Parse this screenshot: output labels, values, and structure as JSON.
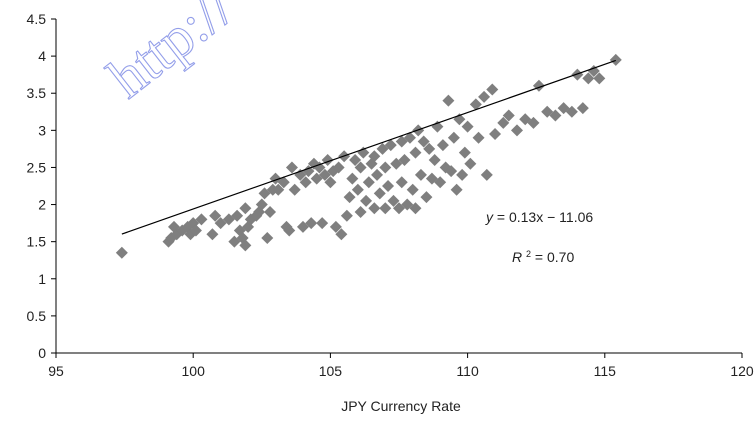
{
  "watermark": "http://",
  "chart_data": {
    "type": "scatter",
    "title": "",
    "xlabel": "JPY Currency Rate",
    "ylabel": "",
    "xlim": [
      95,
      120
    ],
    "ylim": [
      0,
      4.5
    ],
    "xticks": [
      95,
      100,
      105,
      110,
      115,
      120
    ],
    "yticks": [
      0,
      0.5,
      1,
      1.5,
      2,
      2.5,
      3,
      3.5,
      4,
      4.5
    ],
    "marker": "diamond",
    "marker_color": "#7f7f7f",
    "trendline": {
      "slope": 0.13,
      "intercept": -11.06,
      "x_range": [
        97.4,
        115.4
      ],
      "color": "#000000"
    },
    "equation_label": "= 0.13x − 11.06",
    "r2_label": "= 0.70",
    "points": [
      [
        97.4,
        1.35
      ],
      [
        99.1,
        1.5
      ],
      [
        99.2,
        1.55
      ],
      [
        99.3,
        1.7
      ],
      [
        99.4,
        1.6
      ],
      [
        99.6,
        1.65
      ],
      [
        99.8,
        1.7
      ],
      [
        99.9,
        1.6
      ],
      [
        100.0,
        1.75
      ],
      [
        100.1,
        1.65
      ],
      [
        100.3,
        1.8
      ],
      [
        100.7,
        1.6
      ],
      [
        100.8,
        1.85
      ],
      [
        101.0,
        1.75
      ],
      [
        101.3,
        1.8
      ],
      [
        101.5,
        1.5
      ],
      [
        101.6,
        1.85
      ],
      [
        101.7,
        1.65
      ],
      [
        101.8,
        1.55
      ],
      [
        101.9,
        1.45
      ],
      [
        101.9,
        1.95
      ],
      [
        102.0,
        1.7
      ],
      [
        102.1,
        1.8
      ],
      [
        102.3,
        1.85
      ],
      [
        102.4,
        1.9
      ],
      [
        102.5,
        2.0
      ],
      [
        102.6,
        2.15
      ],
      [
        102.7,
        1.55
      ],
      [
        102.8,
        1.9
      ],
      [
        102.9,
        2.2
      ],
      [
        103.0,
        2.35
      ],
      [
        103.1,
        2.2
      ],
      [
        103.3,
        2.3
      ],
      [
        103.4,
        1.7
      ],
      [
        103.5,
        1.65
      ],
      [
        103.6,
        2.5
      ],
      [
        103.7,
        2.2
      ],
      [
        103.9,
        2.4
      ],
      [
        104.0,
        1.7
      ],
      [
        104.1,
        2.3
      ],
      [
        104.2,
        2.45
      ],
      [
        104.3,
        1.75
      ],
      [
        104.4,
        2.55
      ],
      [
        104.5,
        2.35
      ],
      [
        104.6,
        2.5
      ],
      [
        104.7,
        1.75
      ],
      [
        104.8,
        2.4
      ],
      [
        104.9,
        2.6
      ],
      [
        105.0,
        2.3
      ],
      [
        105.1,
        2.45
      ],
      [
        105.2,
        1.7
      ],
      [
        105.3,
        2.5
      ],
      [
        105.4,
        1.6
      ],
      [
        105.5,
        2.65
      ],
      [
        105.6,
        1.85
      ],
      [
        105.7,
        2.1
      ],
      [
        105.8,
        2.35
      ],
      [
        105.9,
        2.6
      ],
      [
        106.0,
        2.2
      ],
      [
        106.1,
        2.5
      ],
      [
        106.1,
        1.9
      ],
      [
        106.2,
        2.7
      ],
      [
        106.3,
        2.05
      ],
      [
        106.4,
        2.3
      ],
      [
        106.5,
        2.55
      ],
      [
        106.6,
        1.95
      ],
      [
        106.6,
        2.65
      ],
      [
        106.7,
        2.4
      ],
      [
        106.8,
        2.15
      ],
      [
        106.9,
        2.75
      ],
      [
        107.0,
        1.95
      ],
      [
        107.0,
        2.5
      ],
      [
        107.1,
        2.25
      ],
      [
        107.2,
        2.8
      ],
      [
        107.3,
        2.05
      ],
      [
        107.4,
        2.55
      ],
      [
        107.5,
        1.95
      ],
      [
        107.6,
        2.85
      ],
      [
        107.6,
        2.3
      ],
      [
        107.7,
        2.6
      ],
      [
        107.8,
        2.0
      ],
      [
        107.9,
        2.9
      ],
      [
        108.0,
        2.2
      ],
      [
        108.1,
        2.7
      ],
      [
        108.1,
        1.95
      ],
      [
        108.2,
        3.0
      ],
      [
        108.3,
        2.4
      ],
      [
        108.4,
        2.85
      ],
      [
        108.5,
        2.1
      ],
      [
        108.6,
        2.75
      ],
      [
        108.7,
        2.35
      ],
      [
        108.8,
        2.6
      ],
      [
        108.9,
        3.05
      ],
      [
        109.0,
        2.3
      ],
      [
        109.1,
        2.8
      ],
      [
        109.2,
        2.5
      ],
      [
        109.3,
        3.4
      ],
      [
        109.4,
        2.45
      ],
      [
        109.5,
        2.9
      ],
      [
        109.6,
        2.2
      ],
      [
        109.7,
        3.15
      ],
      [
        109.8,
        2.4
      ],
      [
        109.9,
        2.7
      ],
      [
        110.0,
        3.05
      ],
      [
        110.1,
        2.55
      ],
      [
        110.3,
        3.35
      ],
      [
        110.4,
        2.9
      ],
      [
        110.6,
        3.45
      ],
      [
        110.7,
        2.4
      ],
      [
        110.9,
        3.55
      ],
      [
        111.0,
        2.95
      ],
      [
        111.3,
        3.1
      ],
      [
        111.5,
        3.2
      ],
      [
        111.8,
        3.0
      ],
      [
        112.1,
        3.15
      ],
      [
        112.4,
        3.1
      ],
      [
        112.6,
        3.6
      ],
      [
        112.9,
        3.25
      ],
      [
        113.2,
        3.2
      ],
      [
        113.5,
        3.3
      ],
      [
        113.8,
        3.25
      ],
      [
        114.0,
        3.75
      ],
      [
        114.2,
        3.3
      ],
      [
        114.4,
        3.7
      ],
      [
        114.6,
        3.8
      ],
      [
        114.8,
        3.7
      ],
      [
        115.4,
        3.95
      ]
    ]
  }
}
